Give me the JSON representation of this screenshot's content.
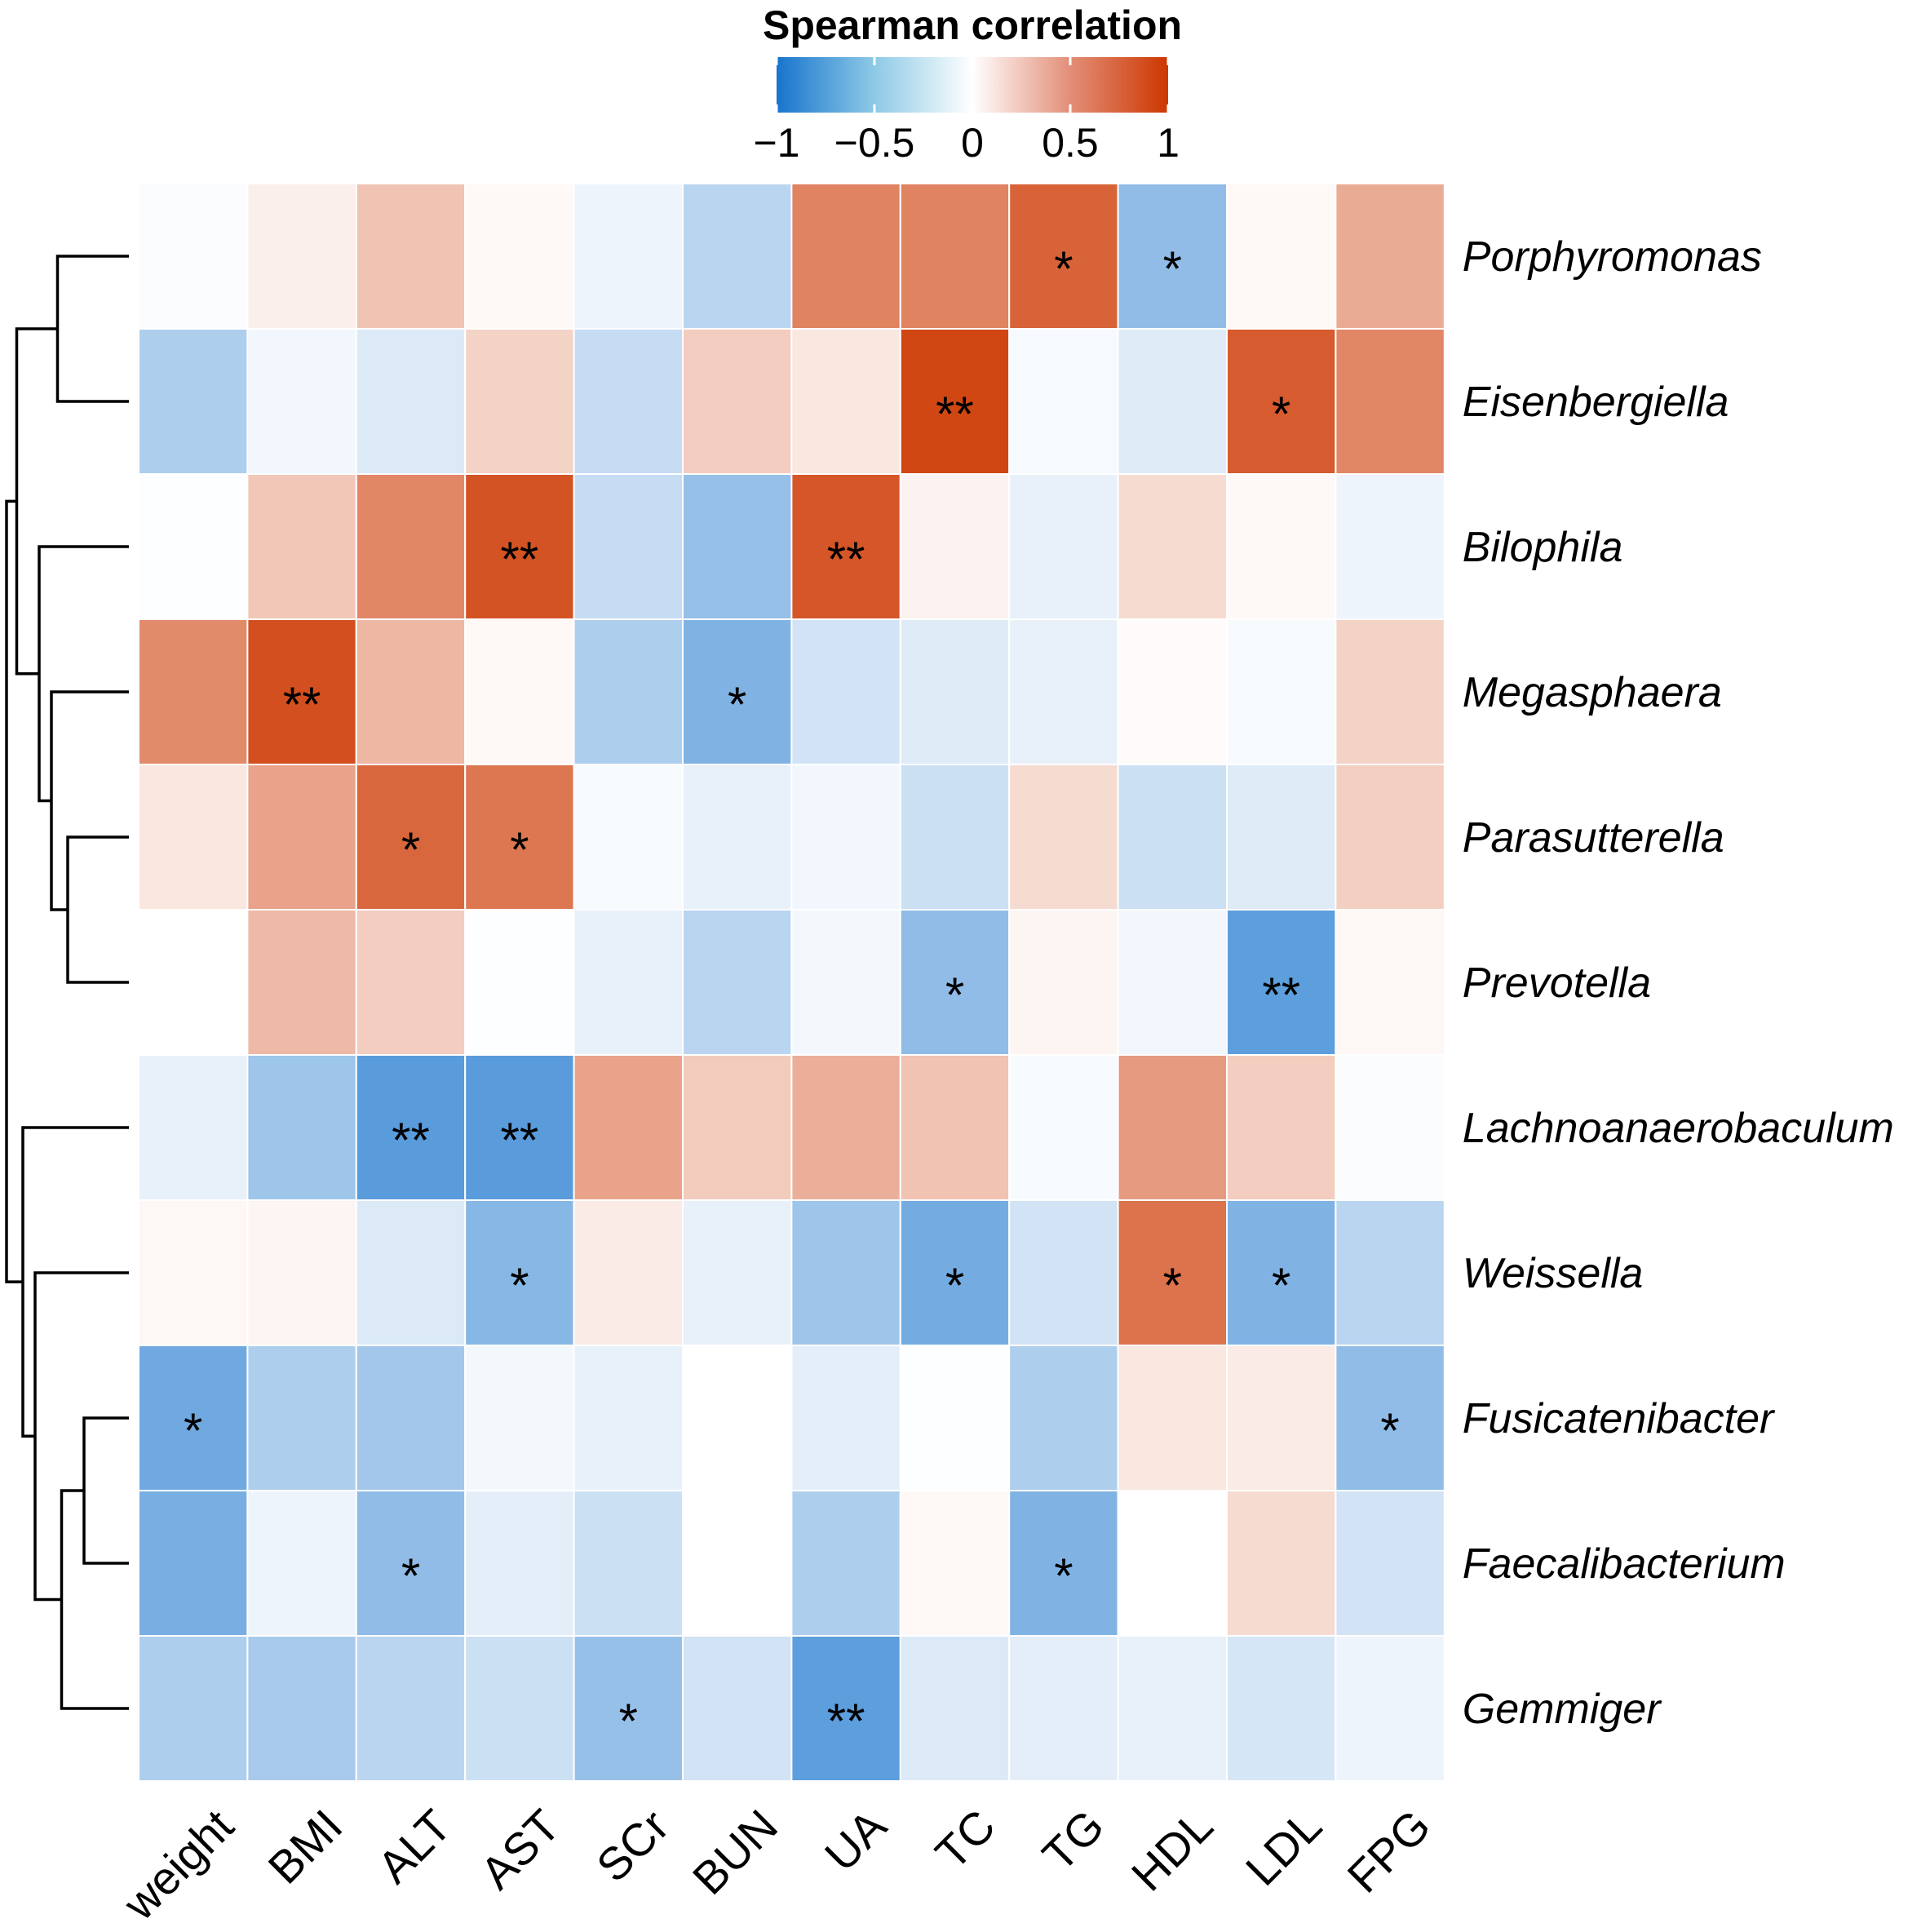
{
  "chart_data": {
    "type": "heatmap",
    "title": "Spearman correlation",
    "columns": [
      "weight",
      "BMI",
      "ALT",
      "AST",
      "SCr",
      "BUN",
      "UA",
      "TC",
      "TG",
      "HDL",
      "LDL",
      "FPG"
    ],
    "rows": [
      "Porphyromonas",
      "Eisenbergiella",
      "Bilophila",
      "Megasphaera",
      "Parasutterella",
      "Prevotella",
      "Lachnoanaerobaculum",
      "Weissella",
      "Fusicatenibacter",
      "Faecalibacterium",
      "Gemmiger"
    ],
    "values": [
      [
        -0.02,
        0.08,
        0.3,
        0.03,
        -0.08,
        -0.3,
        0.62,
        0.62,
        0.78,
        -0.48,
        0.03,
        0.42
      ],
      [
        -0.35,
        -0.06,
        -0.15,
        0.22,
        -0.25,
        0.25,
        0.12,
        0.92,
        -0.04,
        -0.14,
        0.82,
        0.6
      ],
      [
        -0.01,
        0.28,
        0.6,
        0.86,
        -0.25,
        -0.45,
        0.84,
        0.06,
        -0.1,
        0.18,
        0.03,
        -0.08
      ],
      [
        0.58,
        0.88,
        0.36,
        0.03,
        -0.35,
        -0.55,
        -0.2,
        -0.14,
        -0.1,
        0.02,
        -0.03,
        0.22
      ],
      [
        0.12,
        0.46,
        0.76,
        0.68,
        -0.03,
        -0.1,
        -0.06,
        -0.22,
        0.18,
        -0.22,
        -0.14,
        0.24
      ],
      [
        0.0,
        0.35,
        0.25,
        -0.01,
        -0.1,
        -0.3,
        -0.05,
        -0.48,
        0.05,
        -0.06,
        -0.7,
        0.04
      ],
      [
        -0.1,
        -0.42,
        -0.72,
        -0.72,
        0.46,
        0.26,
        0.4,
        0.3,
        -0.03,
        0.5,
        0.25,
        -0.02
      ],
      [
        0.04,
        0.05,
        -0.15,
        -0.52,
        0.1,
        -0.1,
        -0.42,
        -0.6,
        -0.2,
        0.7,
        -0.55,
        -0.3
      ],
      [
        -0.62,
        -0.35,
        -0.4,
        -0.05,
        -0.1,
        0.0,
        -0.12,
        -0.01,
        -0.35,
        0.12,
        0.1,
        -0.48
      ],
      [
        -0.58,
        -0.08,
        -0.48,
        -0.12,
        -0.22,
        0.0,
        -0.35,
        0.03,
        -0.55,
        0.0,
        0.18,
        -0.2
      ],
      [
        -0.35,
        -0.38,
        -0.3,
        -0.22,
        -0.45,
        -0.2,
        -0.7,
        -0.15,
        -0.12,
        -0.1,
        -0.18,
        -0.08
      ]
    ],
    "significance": [
      [
        "",
        "",
        "",
        "",
        "",
        "",
        "",
        "",
        "*",
        "*",
        "",
        ""
      ],
      [
        "",
        "",
        "",
        "",
        "",
        "",
        "",
        "**",
        "",
        "",
        "*",
        ""
      ],
      [
        "",
        "",
        "",
        "**",
        "",
        "",
        "**",
        "",
        "",
        "",
        "",
        ""
      ],
      [
        "",
        "**",
        "",
        "",
        "",
        "*",
        "",
        "",
        "",
        "",
        "",
        ""
      ],
      [
        "",
        "",
        "*",
        "*",
        "",
        "",
        "",
        "",
        "",
        "",
        "",
        ""
      ],
      [
        "",
        "",
        "",
        "",
        "",
        "",
        "",
        "*",
        "",
        "",
        "**",
        ""
      ],
      [
        "",
        "",
        "**",
        "**",
        "",
        "",
        "",
        "",
        "",
        "",
        "",
        ""
      ],
      [
        "",
        "",
        "",
        "*",
        "",
        "",
        "",
        "*",
        "",
        "*",
        "*",
        ""
      ],
      [
        "*",
        "",
        "",
        "",
        "",
        "",
        "",
        "",
        "",
        "",
        "",
        "*"
      ],
      [
        "",
        "",
        "*",
        "",
        "",
        "",
        "",
        "",
        "*",
        "",
        "",
        ""
      ],
      [
        "",
        "",
        "",
        "",
        "*",
        "",
        "**",
        "",
        "",
        "",
        "",
        ""
      ]
    ],
    "color_scale": {
      "range": [
        -1,
        1
      ],
      "low": "#1874CD",
      "mid": "#FFFFFF",
      "high": "#CD3700"
    },
    "legend_ticks": [
      {
        "value": -1,
        "label": "−1"
      },
      {
        "value": -0.5,
        "label": "−0.5"
      },
      {
        "value": 0,
        "label": "0"
      },
      {
        "value": 0.5,
        "label": "0.5"
      },
      {
        "value": 1,
        "label": "1"
      }
    ],
    "row_dendrogram": [
      {
        "a": 0,
        "b": 1
      },
      {
        "a": 4,
        "b": 5
      },
      {
        "a": 3,
        "b": "n1"
      },
      {
        "a": 2,
        "b": "n2"
      },
      {
        "a": "n0",
        "b": "n3"
      },
      {
        "a": 8,
        "b": 9
      },
      {
        "a": "n5",
        "b": 10
      },
      {
        "a": 7,
        "b": "n6"
      },
      {
        "a": 6,
        "b": "n7"
      },
      {
        "a": "n4",
        "b": "n8"
      }
    ],
    "row_dendrogram_heights": [
      0.35,
      0.3,
      0.38,
      0.44,
      0.55,
      0.22,
      0.33,
      0.46,
      0.52,
      0.6
    ]
  }
}
